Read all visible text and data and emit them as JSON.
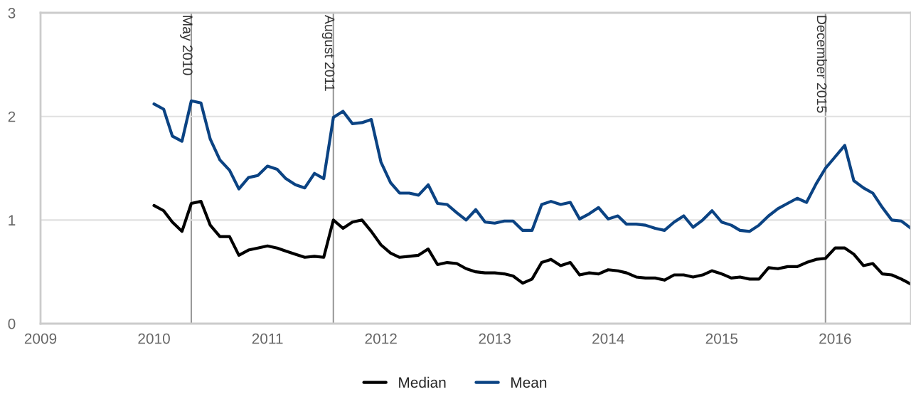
{
  "chart_data": {
    "type": "line",
    "x": [
      "2010-01",
      "2010-02",
      "2010-03",
      "2010-04",
      "2010-05",
      "2010-06",
      "2010-07",
      "2010-08",
      "2010-09",
      "2010-10",
      "2010-11",
      "2010-12",
      "2011-01",
      "2011-02",
      "2011-03",
      "2011-04",
      "2011-05",
      "2011-06",
      "2011-07",
      "2011-08",
      "2011-09",
      "2011-10",
      "2011-11",
      "2011-12",
      "2012-01",
      "2012-02",
      "2012-03",
      "2012-04",
      "2012-05",
      "2012-06",
      "2012-07",
      "2012-08",
      "2012-09",
      "2012-10",
      "2012-11",
      "2012-12",
      "2013-01",
      "2013-02",
      "2013-03",
      "2013-04",
      "2013-05",
      "2013-06",
      "2013-07",
      "2013-08",
      "2013-09",
      "2013-10",
      "2013-11",
      "2013-12",
      "2014-01",
      "2014-02",
      "2014-03",
      "2014-04",
      "2014-05",
      "2014-06",
      "2014-07",
      "2014-08",
      "2014-09",
      "2014-10",
      "2014-11",
      "2014-12",
      "2015-01",
      "2015-02",
      "2015-03",
      "2015-04",
      "2015-05",
      "2015-06",
      "2015-07",
      "2015-08",
      "2015-09",
      "2015-10",
      "2015-11",
      "2015-12",
      "2016-01",
      "2016-02",
      "2016-03",
      "2016-04",
      "2016-05",
      "2016-06",
      "2016-07",
      "2016-08",
      "2016-09"
    ],
    "series": [
      {
        "name": "Median",
        "color": "#000000",
        "values": [
          1.14,
          1.09,
          0.98,
          0.89,
          1.16,
          1.18,
          0.95,
          0.84,
          0.84,
          0.66,
          0.71,
          0.73,
          0.75,
          0.73,
          0.7,
          0.67,
          0.64,
          0.65,
          0.64,
          1.0,
          0.92,
          0.98,
          1.0,
          0.89,
          0.76,
          0.68,
          0.64,
          0.65,
          0.66,
          0.72,
          0.57,
          0.59,
          0.58,
          0.53,
          0.5,
          0.49,
          0.49,
          0.48,
          0.46,
          0.39,
          0.43,
          0.59,
          0.62,
          0.56,
          0.59,
          0.47,
          0.49,
          0.48,
          0.52,
          0.51,
          0.49,
          0.45,
          0.44,
          0.44,
          0.42,
          0.47,
          0.47,
          0.45,
          0.47,
          0.51,
          0.48,
          0.44,
          0.45,
          0.43,
          0.43,
          0.54,
          0.53,
          0.55,
          0.55,
          0.59,
          0.62,
          0.63,
          0.73,
          0.73,
          0.67,
          0.56,
          0.58,
          0.48,
          0.47,
          0.43,
          0.38
        ]
      },
      {
        "name": "Mean",
        "color": "#0b4383",
        "values": [
          2.12,
          2.07,
          1.81,
          1.76,
          2.15,
          2.13,
          1.78,
          1.58,
          1.48,
          1.3,
          1.41,
          1.43,
          1.52,
          1.49,
          1.4,
          1.34,
          1.31,
          1.45,
          1.4,
          1.99,
          2.05,
          1.93,
          1.94,
          1.97,
          1.56,
          1.36,
          1.26,
          1.26,
          1.24,
          1.34,
          1.16,
          1.15,
          1.07,
          1.0,
          1.1,
          0.98,
          0.97,
          0.99,
          0.99,
          0.9,
          0.9,
          1.15,
          1.18,
          1.15,
          1.17,
          1.01,
          1.06,
          1.12,
          1.01,
          1.04,
          0.96,
          0.96,
          0.95,
          0.92,
          0.9,
          0.98,
          1.04,
          0.93,
          1.0,
          1.09,
          0.98,
          0.95,
          0.9,
          0.89,
          0.95,
          1.04,
          1.11,
          1.16,
          1.21,
          1.17,
          1.35,
          1.5,
          1.61,
          1.72,
          1.38,
          1.31,
          1.26,
          1.12,
          1.0,
          0.99,
          0.92
        ]
      }
    ],
    "xlim": [
      "2009-01",
      "2016-09"
    ],
    "xticks": [
      "2009",
      "2010",
      "2011",
      "2012",
      "2013",
      "2014",
      "2015",
      "2016"
    ],
    "ylim": [
      0,
      3
    ],
    "yticks": [
      0,
      1,
      2,
      3
    ],
    "grid": "y",
    "legend": "bottom",
    "ref_lines": [
      {
        "axis": "x",
        "value": "2010-05",
        "label": "May 2010",
        "color": "#999999"
      },
      {
        "axis": "x",
        "value": "2011-08",
        "label": "August 2011",
        "color": "#999999"
      },
      {
        "axis": "x",
        "value": "2015-12",
        "label": "December 2015",
        "color": "#999999"
      }
    ]
  }
}
